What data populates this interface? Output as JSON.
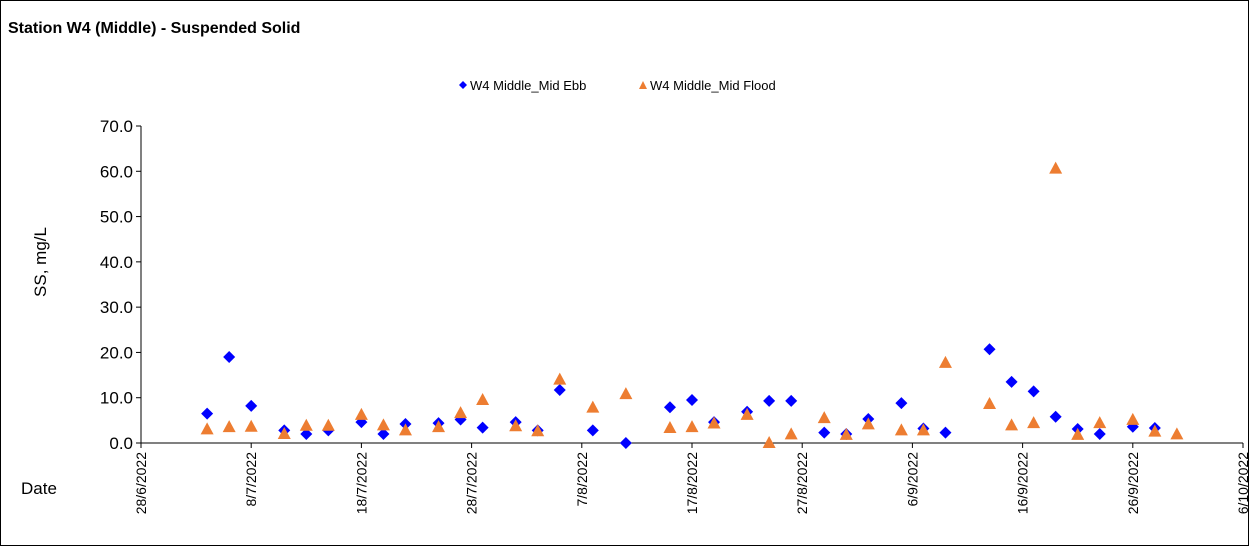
{
  "chart_data": {
    "type": "scatter",
    "title": "Station W4 (Middle) - Suspended Solid",
    "ylabel": "SS, mg/L",
    "xlabel": "Date",
    "ylim": [
      0,
      70
    ],
    "yticks": [
      0,
      10,
      20,
      30,
      40,
      50,
      60,
      70
    ],
    "ytick_labels": [
      "0.0",
      "10.0",
      "20.0",
      "30.0",
      "40.0",
      "50.0",
      "60.0",
      "70.0"
    ],
    "xlim": [
      "2022-06-28",
      "2022-10-06"
    ],
    "xticks": [
      "2022-06-28",
      "2022-07-08",
      "2022-07-18",
      "2022-07-28",
      "2022-08-07",
      "2022-08-17",
      "2022-08-27",
      "2022-09-06",
      "2022-09-16",
      "2022-09-26",
      "2022-10-06"
    ],
    "xtick_labels": [
      "28/6/2022",
      "8/7/2022",
      "18/7/2022",
      "28/7/2022",
      "7/8/2022",
      "17/8/2022",
      "27/8/2022",
      "6/9/2022",
      "16/9/2022",
      "26/9/2022",
      "6/10/2022"
    ],
    "legend_position": "top-center",
    "grid": false,
    "series": [
      {
        "name": "W4 Middle_Mid Ebb",
        "marker": "diamond",
        "color": "#0000FF",
        "points": [
          {
            "x": "2022-07-04",
            "y": 6.5
          },
          {
            "x": "2022-07-06",
            "y": 19.0
          },
          {
            "x": "2022-07-08",
            "y": 8.2
          },
          {
            "x": "2022-07-11",
            "y": 2.8
          },
          {
            "x": "2022-07-13",
            "y": 2.0
          },
          {
            "x": "2022-07-15",
            "y": 2.8
          },
          {
            "x": "2022-07-18",
            "y": 4.6
          },
          {
            "x": "2022-07-20",
            "y": 2.0
          },
          {
            "x": "2022-07-22",
            "y": 4.2
          },
          {
            "x": "2022-07-25",
            "y": 4.4
          },
          {
            "x": "2022-07-27",
            "y": 5.2
          },
          {
            "x": "2022-07-29",
            "y": 3.4
          },
          {
            "x": "2022-08-01",
            "y": 4.6
          },
          {
            "x": "2022-08-03",
            "y": 2.8
          },
          {
            "x": "2022-08-05",
            "y": 11.7
          },
          {
            "x": "2022-08-08",
            "y": 2.8
          },
          {
            "x": "2022-08-11",
            "y": 0.0
          },
          {
            "x": "2022-08-15",
            "y": 7.9
          },
          {
            "x": "2022-08-17",
            "y": 9.5
          },
          {
            "x": "2022-08-19",
            "y": 4.6
          },
          {
            "x": "2022-08-22",
            "y": 6.9
          },
          {
            "x": "2022-08-24",
            "y": 9.3
          },
          {
            "x": "2022-08-26",
            "y": 9.3
          },
          {
            "x": "2022-08-29",
            "y": 2.3
          },
          {
            "x": "2022-08-31",
            "y": 2.0
          },
          {
            "x": "2022-09-02",
            "y": 5.3
          },
          {
            "x": "2022-09-05",
            "y": 8.8
          },
          {
            "x": "2022-09-07",
            "y": 3.2
          },
          {
            "x": "2022-09-09",
            "y": 2.3
          },
          {
            "x": "2022-09-13",
            "y": 20.7
          },
          {
            "x": "2022-09-15",
            "y": 13.5
          },
          {
            "x": "2022-09-17",
            "y": 11.4
          },
          {
            "x": "2022-09-19",
            "y": 5.8
          },
          {
            "x": "2022-09-21",
            "y": 3.1
          },
          {
            "x": "2022-09-23",
            "y": 2.0
          },
          {
            "x": "2022-09-26",
            "y": 3.6
          },
          {
            "x": "2022-09-28",
            "y": 3.3
          }
        ]
      },
      {
        "name": "W4 Middle_Mid Flood",
        "marker": "triangle",
        "color": "#ED7D31",
        "points": [
          {
            "x": "2022-07-04",
            "y": 3.0
          },
          {
            "x": "2022-07-06",
            "y": 3.5
          },
          {
            "x": "2022-07-08",
            "y": 3.6
          },
          {
            "x": "2022-07-11",
            "y": 2.0
          },
          {
            "x": "2022-07-13",
            "y": 3.8
          },
          {
            "x": "2022-07-15",
            "y": 3.8
          },
          {
            "x": "2022-07-18",
            "y": 6.2
          },
          {
            "x": "2022-07-20",
            "y": 3.9
          },
          {
            "x": "2022-07-22",
            "y": 2.8
          },
          {
            "x": "2022-07-25",
            "y": 3.5
          },
          {
            "x": "2022-07-27",
            "y": 6.6
          },
          {
            "x": "2022-07-29",
            "y": 9.5
          },
          {
            "x": "2022-08-01",
            "y": 3.7
          },
          {
            "x": "2022-08-03",
            "y": 2.6
          },
          {
            "x": "2022-08-05",
            "y": 14.0
          },
          {
            "x": "2022-08-08",
            "y": 7.8
          },
          {
            "x": "2022-08-11",
            "y": 10.8
          },
          {
            "x": "2022-08-15",
            "y": 3.3
          },
          {
            "x": "2022-08-17",
            "y": 3.5
          },
          {
            "x": "2022-08-19",
            "y": 4.3
          },
          {
            "x": "2022-08-22",
            "y": 6.2
          },
          {
            "x": "2022-08-24",
            "y": 0.0
          },
          {
            "x": "2022-08-26",
            "y": 1.9
          },
          {
            "x": "2022-08-29",
            "y": 5.5
          },
          {
            "x": "2022-08-31",
            "y": 1.8
          },
          {
            "x": "2022-09-02",
            "y": 4.1
          },
          {
            "x": "2022-09-05",
            "y": 2.8
          },
          {
            "x": "2022-09-07",
            "y": 2.8
          },
          {
            "x": "2022-09-09",
            "y": 17.7
          },
          {
            "x": "2022-09-13",
            "y": 8.6
          },
          {
            "x": "2022-09-15",
            "y": 3.9
          },
          {
            "x": "2022-09-17",
            "y": 4.4
          },
          {
            "x": "2022-09-19",
            "y": 60.6
          },
          {
            "x": "2022-09-21",
            "y": 1.8
          },
          {
            "x": "2022-09-23",
            "y": 4.4
          },
          {
            "x": "2022-09-26",
            "y": 5.1
          },
          {
            "x": "2022-09-28",
            "y": 2.5
          },
          {
            "x": "2022-09-30",
            "y": 1.9
          }
        ]
      }
    ]
  }
}
